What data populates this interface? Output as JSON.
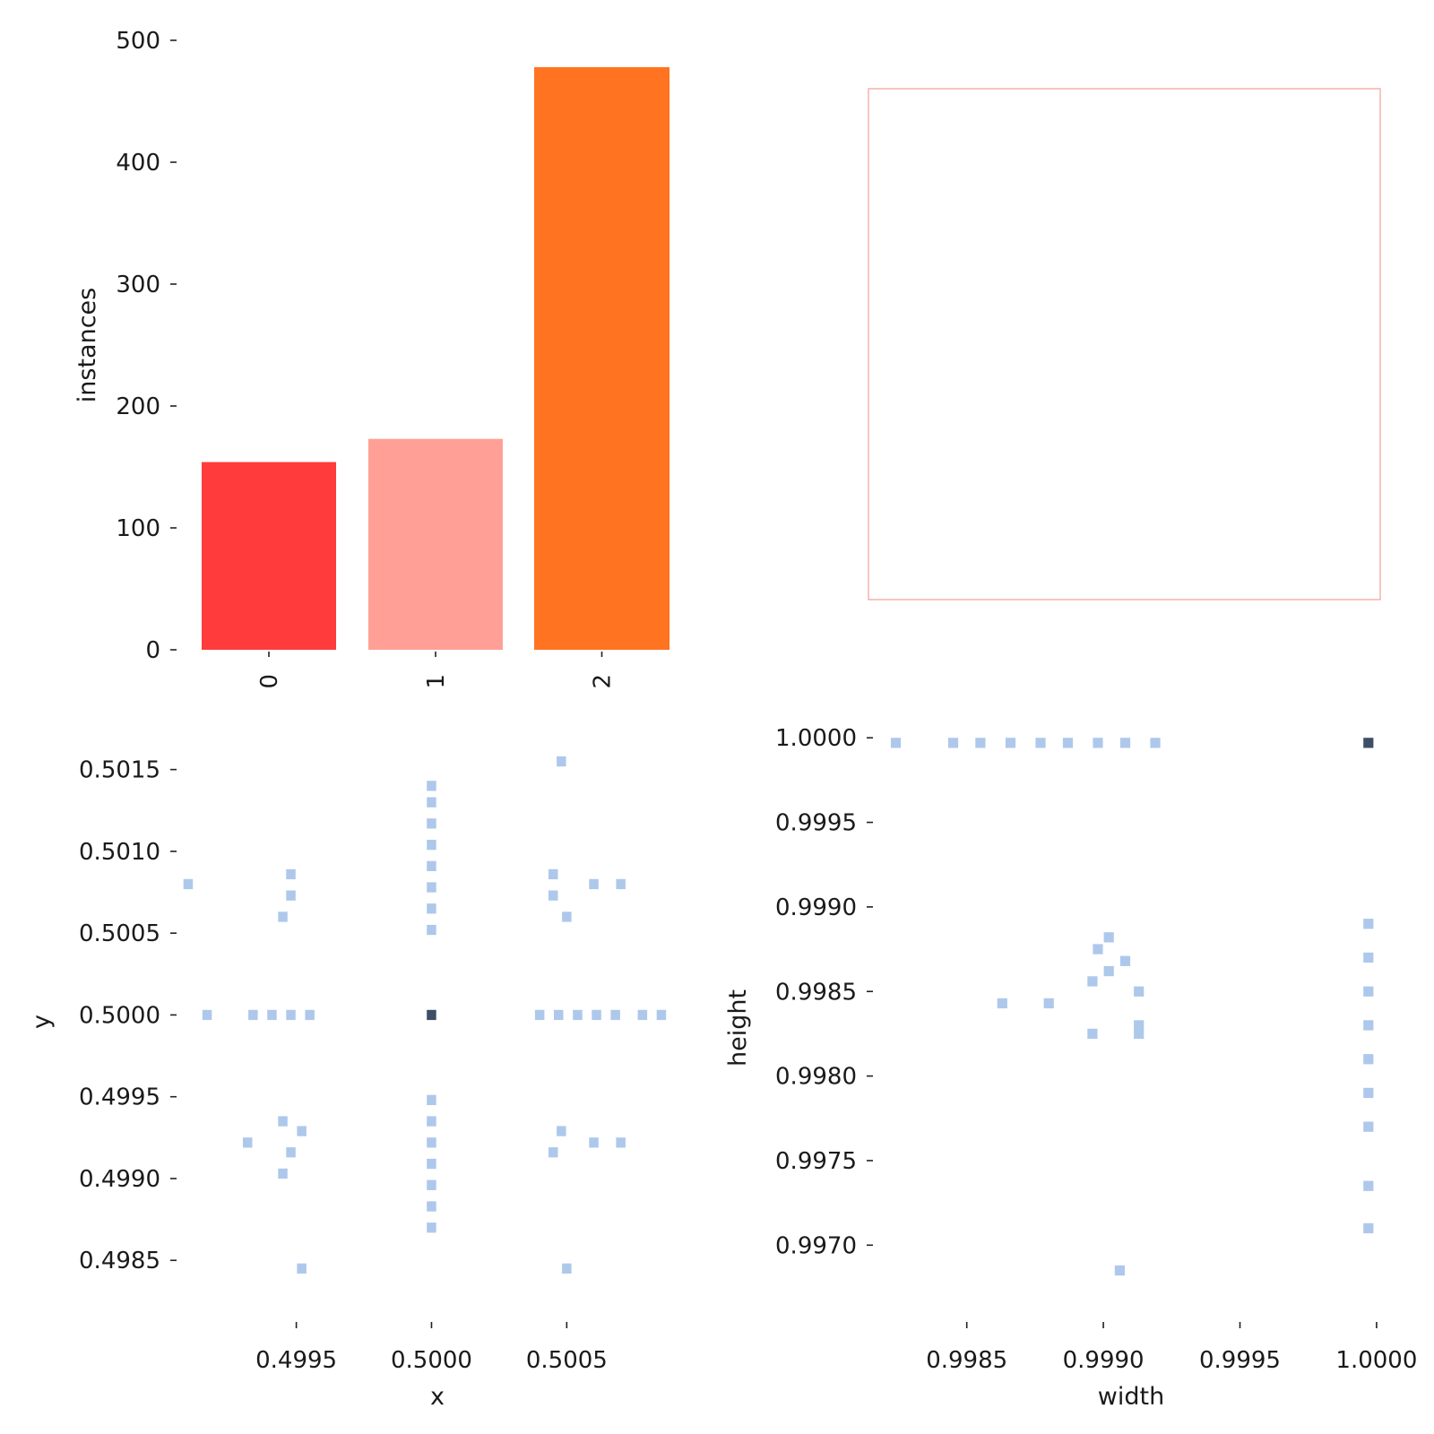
{
  "chart_data": [
    {
      "type": "bar",
      "panel": "top-left",
      "categories": [
        "0",
        "1",
        "2"
      ],
      "values": [
        154,
        173,
        478
      ],
      "colors": [
        "#ff3b3b",
        "#ff9f96",
        "#ff7321"
      ],
      "ylabel": "instances",
      "yticks": [
        0,
        100,
        200,
        300,
        400,
        500
      ],
      "ytick_labels": [
        "0",
        "100",
        "200",
        "300",
        "400",
        "500"
      ],
      "ylim": [
        0,
        500
      ]
    },
    {
      "type": "empty",
      "panel": "top-right",
      "frame_color": "#f08070"
    },
    {
      "type": "heatmap",
      "panel": "bottom-left",
      "xlabel": "x",
      "ylabel": "y",
      "cell_color": "#aec8eb",
      "peak_color": "#3d4f66",
      "xticks": [
        0.4995,
        0.5,
        0.5005
      ],
      "xtick_labels": [
        "0.4995",
        "0.5000",
        "0.5005"
      ],
      "yticks": [
        0.4985,
        0.499,
        0.4995,
        0.5,
        0.5005,
        0.501,
        0.5015
      ],
      "ytick_labels": [
        "0.4985",
        "0.4990",
        "0.4995",
        "0.5000",
        "0.5005",
        "0.5010",
        "0.5015"
      ],
      "xlim": [
        0.49915,
        0.50088
      ],
      "ylim": [
        0.4982,
        0.50175
      ],
      "cell_w": 3.48e-05,
      "cell_h": 6.19e-05,
      "cells": [
        [
          0.5,
          0.5,
          "peak"
        ],
        [
          0.49917,
          0.5
        ],
        [
          0.49934,
          0.5
        ],
        [
          0.49941,
          0.5
        ],
        [
          0.49948,
          0.5
        ],
        [
          0.49955,
          0.5
        ],
        [
          0.5004,
          0.5
        ],
        [
          0.50047,
          0.5
        ],
        [
          0.50054,
          0.5
        ],
        [
          0.50061,
          0.5
        ],
        [
          0.50068,
          0.5
        ],
        [
          0.50078,
          0.5
        ],
        [
          0.50085,
          0.5
        ],
        [
          0.5,
          0.50052
        ],
        [
          0.5,
          0.50065
        ],
        [
          0.5,
          0.50078
        ],
        [
          0.5,
          0.50091
        ],
        [
          0.5,
          0.50104
        ],
        [
          0.5,
          0.50117
        ],
        [
          0.5,
          0.5013
        ],
        [
          0.5,
          0.5014
        ],
        [
          0.5,
          0.49948
        ],
        [
          0.5,
          0.49935
        ],
        [
          0.5,
          0.49922
        ],
        [
          0.5,
          0.49909
        ],
        [
          0.5,
          0.49896
        ],
        [
          0.5,
          0.49883
        ],
        [
          0.5,
          0.4987
        ],
        [
          0.4991,
          0.5008
        ],
        [
          0.49948,
          0.50086
        ],
        [
          0.49948,
          0.50073
        ],
        [
          0.49945,
          0.5006
        ],
        [
          0.50045,
          0.50086
        ],
        [
          0.50045,
          0.50073
        ],
        [
          0.5005,
          0.5006
        ],
        [
          0.5006,
          0.5008
        ],
        [
          0.5007,
          0.5008
        ],
        [
          0.50048,
          0.50155
        ],
        [
          0.49945,
          0.49935
        ],
        [
          0.49952,
          0.49929
        ],
        [
          0.49948,
          0.49916
        ],
        [
          0.49932,
          0.49922
        ],
        [
          0.49945,
          0.49903
        ],
        [
          0.50048,
          0.49929
        ],
        [
          0.50045,
          0.49916
        ],
        [
          0.5006,
          0.49922
        ],
        [
          0.5007,
          0.49922
        ],
        [
          0.5005,
          0.49845
        ],
        [
          0.49952,
          0.49845
        ]
      ]
    },
    {
      "type": "heatmap",
      "panel": "bottom-right",
      "xlabel": "width",
      "ylabel": "height",
      "cell_color": "#aec8eb",
      "peak_color": "#3d4f66",
      "xticks": [
        0.9985,
        0.999,
        0.9995,
        1.0
      ],
      "xtick_labels": [
        "0.9985",
        "0.9990",
        "0.9995",
        "1.0000"
      ],
      "yticks": [
        0.997,
        0.9975,
        0.998,
        0.9985,
        0.999,
        0.9995,
        1.0
      ],
      "ytick_labels": [
        "0.9970",
        "0.9975",
        "0.9980",
        "0.9985",
        "0.9990",
        "0.9995",
        "1.0000"
      ],
      "xlim": [
        0.99815,
        1.00002
      ],
      "ylim": [
        0.99662,
        1.00007
      ],
      "cell_w": 3.66e-05,
      "cell_h": 6.01e-05,
      "cells": [
        [
          0.99997,
          0.99997,
          "peak"
        ],
        [
          0.99824,
          0.99997
        ],
        [
          0.99845,
          0.99997
        ],
        [
          0.99855,
          0.99997
        ],
        [
          0.99866,
          0.99997
        ],
        [
          0.99877,
          0.99997
        ],
        [
          0.99887,
          0.99997
        ],
        [
          0.99898,
          0.99997
        ],
        [
          0.99908,
          0.99997
        ],
        [
          0.99919,
          0.99997
        ],
        [
          0.99997,
          0.9989
        ],
        [
          0.99997,
          0.9987
        ],
        [
          0.99997,
          0.9985
        ],
        [
          0.99997,
          0.9983
        ],
        [
          0.99997,
          0.9981
        ],
        [
          0.99997,
          0.9979
        ],
        [
          0.99997,
          0.9977
        ],
        [
          0.99997,
          0.99735
        ],
        [
          0.99997,
          0.9971
        ],
        [
          0.99902,
          0.99882
        ],
        [
          0.99898,
          0.99875
        ],
        [
          0.99908,
          0.99868
        ],
        [
          0.99902,
          0.99862
        ],
        [
          0.99896,
          0.99856
        ],
        [
          0.99863,
          0.99843
        ],
        [
          0.9988,
          0.99843
        ],
        [
          0.99913,
          0.9985
        ],
        [
          0.99913,
          0.9983
        ],
        [
          0.99896,
          0.99825
        ],
        [
          0.99913,
          0.99825
        ],
        [
          0.99906,
          0.99685
        ]
      ]
    }
  ]
}
